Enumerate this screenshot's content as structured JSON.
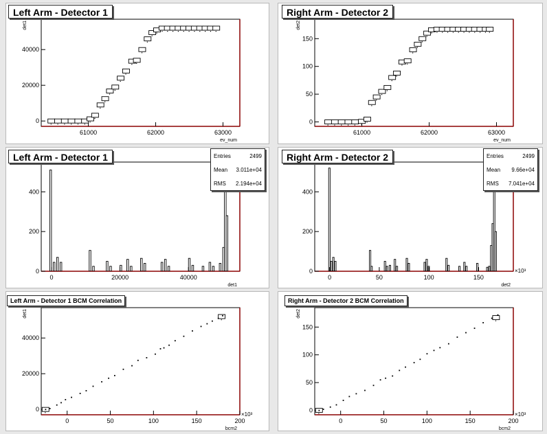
{
  "pads": [
    {
      "title": "Left Arm - Detector 1"
    },
    {
      "title": "Right Arm - Detector 2"
    },
    {
      "title": "Left Arm - Detector 1"
    },
    {
      "title": "Right Arm - Detector 2"
    },
    {
      "title": "Left Arm - Detector 1 BCM Correlation"
    },
    {
      "title": "Right Arm - Detector 2 BCM Correlation"
    }
  ],
  "stats": [
    {
      "entries_label": "Entries",
      "entries": "2499",
      "mean_label": "Mean",
      "mean": "3.011e+04",
      "rms_label": "RMS",
      "rms": "2.194e+04"
    },
    {
      "entries_label": "Entries",
      "entries": "2499",
      "mean_label": "Mean",
      "mean": "9.66e+04",
      "rms_label": "RMS",
      "rms": "7.041e+04"
    }
  ],
  "colors": {
    "frame": "#8b0000",
    "background": "#e8e8e8",
    "pad": "#ffffff",
    "marks": "#000000"
  },
  "chart_data": [
    {
      "type": "scatter",
      "title": "Left Arm - Detector 1",
      "xlabel": "ev_num",
      "ylabel": "det1",
      "xlim": [
        60300,
        63250
      ],
      "ylim": [
        -3000,
        57000
      ],
      "xticks": [
        61000,
        62000,
        63000
      ],
      "xtick_labels": [
        "61000",
        "62000",
        "63000"
      ],
      "yticks": [
        0,
        20000,
        40000
      ],
      "ytick_labels": [
        "0",
        "20000",
        "40000"
      ],
      "boxes": [
        [
          60450,
          0
        ],
        [
          60550,
          0
        ],
        [
          60650,
          0
        ],
        [
          60750,
          0
        ],
        [
          60850,
          0
        ],
        [
          60950,
          0
        ],
        [
          61030,
          1200
        ],
        [
          61100,
          3200
        ],
        [
          61180,
          9000
        ],
        [
          61250,
          12500
        ],
        [
          61320,
          16800
        ],
        [
          61400,
          19000
        ],
        [
          61480,
          24000
        ],
        [
          61560,
          28000
        ],
        [
          61650,
          33500
        ],
        [
          61720,
          34000
        ],
        [
          61800,
          40000
        ],
        [
          61880,
          46000
        ],
        [
          61950,
          49500
        ],
        [
          62020,
          51000
        ],
        [
          62100,
          52000
        ],
        [
          62180,
          52000
        ],
        [
          62260,
          52000
        ],
        [
          62340,
          52000
        ],
        [
          62420,
          52000
        ],
        [
          62500,
          52000
        ],
        [
          62580,
          52000
        ],
        [
          62660,
          52000
        ],
        [
          62740,
          52000
        ],
        [
          62820,
          52000
        ],
        [
          62900,
          52000
        ]
      ]
    },
    {
      "type": "scatter",
      "title": "Right Arm - Detector 2",
      "xlabel": "ev_num",
      "ylabel": "det2",
      "xlim": [
        60300,
        63250
      ],
      "ylim": [
        -8,
        185
      ],
      "xticks": [
        61000,
        62000,
        63000
      ],
      "xtick_labels": [
        "61000",
        "62000",
        "63000"
      ],
      "yticks": [
        0,
        50,
        100,
        150
      ],
      "ytick_labels": [
        "0",
        "50",
        "100",
        "150"
      ],
      "boxes": [
        [
          60500,
          0
        ],
        [
          60600,
          0
        ],
        [
          60700,
          0
        ],
        [
          60800,
          0
        ],
        [
          60900,
          0
        ],
        [
          61000,
          1
        ],
        [
          61080,
          5
        ],
        [
          61150,
          35
        ],
        [
          61220,
          45
        ],
        [
          61300,
          55
        ],
        [
          61380,
          62
        ],
        [
          61450,
          80
        ],
        [
          61520,
          88
        ],
        [
          61600,
          108
        ],
        [
          61680,
          110
        ],
        [
          61760,
          130
        ],
        [
          61830,
          140
        ],
        [
          61900,
          150
        ],
        [
          61970,
          160
        ],
        [
          62040,
          166
        ],
        [
          62120,
          167
        ],
        [
          62200,
          167
        ],
        [
          62280,
          167
        ],
        [
          62360,
          167
        ],
        [
          62440,
          167
        ],
        [
          62520,
          167
        ],
        [
          62600,
          167
        ],
        [
          62680,
          167
        ],
        [
          62760,
          167
        ],
        [
          62840,
          167
        ],
        [
          62900,
          167
        ]
      ]
    },
    {
      "type": "bar",
      "title": "Left Arm - Detector 1",
      "xlabel": "det1",
      "ylabel": "",
      "xlim": [
        -3000,
        55000
      ],
      "ylim": [
        0,
        550
      ],
      "xticks": [
        0,
        20000,
        40000
      ],
      "xtick_labels": [
        "0",
        "20000",
        "40000"
      ],
      "yticks": [
        0,
        200,
        400
      ],
      "ytick_labels": [
        "0",
        "200",
        "400"
      ],
      "bin_width": 500,
      "bins": [
        [
          -500,
          510
        ],
        [
          500,
          45
        ],
        [
          1500,
          70
        ],
        [
          2500,
          45
        ],
        [
          11000,
          105
        ],
        [
          12000,
          25
        ],
        [
          16000,
          50
        ],
        [
          17000,
          25
        ],
        [
          20000,
          30
        ],
        [
          22000,
          60
        ],
        [
          23000,
          25
        ],
        [
          26000,
          65
        ],
        [
          27000,
          40
        ],
        [
          32000,
          45
        ],
        [
          33000,
          60
        ],
        [
          34000,
          25
        ],
        [
          40000,
          65
        ],
        [
          41000,
          30
        ],
        [
          44000,
          25
        ],
        [
          46000,
          45
        ],
        [
          47000,
          25
        ],
        [
          49000,
          40
        ],
        [
          50000,
          120
        ],
        [
          50500,
          440
        ],
        [
          51000,
          280
        ]
      ]
    },
    {
      "type": "bar",
      "title": "Right Arm - Detector 2",
      "xlabel": "det2",
      "ylabel": "",
      "x_multiplier": "×10³",
      "xlim": [
        -15,
        185
      ],
      "ylim": [
        0,
        550
      ],
      "xticks": [
        0,
        50,
        100,
        150
      ],
      "xtick_labels": [
        "0",
        "50",
        "100",
        "150"
      ],
      "yticks": [
        0,
        200,
        400
      ],
      "ytick_labels": [
        "0",
        "200",
        "400"
      ],
      "bin_width": 1.5,
      "bins": [
        [
          -1,
          520
        ],
        [
          1,
          50
        ],
        [
          3,
          70
        ],
        [
          5,
          50
        ],
        [
          40,
          105
        ],
        [
          41.5,
          25
        ],
        [
          55,
          50
        ],
        [
          57,
          25
        ],
        [
          60,
          30
        ],
        [
          65,
          60
        ],
        [
          67,
          25
        ],
        [
          77,
          65
        ],
        [
          79,
          40
        ],
        [
          95,
          45
        ],
        [
          97,
          60
        ],
        [
          99,
          25
        ],
        [
          117,
          65
        ],
        [
          119,
          30
        ],
        [
          130,
          25
        ],
        [
          135,
          45
        ],
        [
          137,
          25
        ],
        [
          148,
          40
        ],
        [
          158,
          20
        ],
        [
          160,
          25
        ],
        [
          162,
          130
        ],
        [
          163.5,
          240
        ],
        [
          165,
          420
        ],
        [
          166.5,
          200
        ]
      ]
    },
    {
      "type": "scatter",
      "title": "Left Arm - Detector 1 BCM Correlation",
      "xlabel": "bcm2",
      "ylabel": "det1",
      "x_multiplier": "×10³",
      "xlim": [
        -30,
        200
      ],
      "ylim": [
        -3000,
        57000
      ],
      "xticks": [
        0,
        50,
        100,
        150,
        200
      ],
      "xtick_labels": [
        "0",
        "50",
        "100",
        "150",
        "200"
      ],
      "yticks": [
        0,
        20000,
        40000
      ],
      "ytick_labels": [
        "0",
        "20000",
        "40000"
      ],
      "points": [
        [
          -25,
          0
        ],
        [
          -20,
          500
        ],
        [
          -12,
          2500
        ],
        [
          -7,
          3800
        ],
        [
          -2,
          5500
        ],
        [
          5,
          6800
        ],
        [
          15,
          9000
        ],
        [
          22,
          10500
        ],
        [
          30,
          13000
        ],
        [
          40,
          15500
        ],
        [
          48,
          17500
        ],
        [
          55,
          19000
        ],
        [
          65,
          22500
        ],
        [
          75,
          24500
        ],
        [
          82,
          27500
        ],
        [
          92,
          29000
        ],
        [
          102,
          31000
        ],
        [
          108,
          34000
        ],
        [
          112,
          34500
        ],
        [
          118,
          36000
        ],
        [
          125,
          38500
        ],
        [
          135,
          41000
        ],
        [
          145,
          44000
        ],
        [
          155,
          46500
        ],
        [
          162,
          48000
        ],
        [
          168,
          49500
        ],
        [
          175,
          51000
        ],
        [
          180,
          52500
        ]
      ],
      "boxes": [
        [
          -25,
          0
        ],
        [
          179,
          52000
        ]
      ]
    },
    {
      "type": "scatter",
      "title": "Right Arm - Detector 2 BCM Correlation",
      "xlabel": "bcm2",
      "ylabel": "det2",
      "x_multiplier": "×10³",
      "xlim": [
        -30,
        200
      ],
      "ylim": [
        -8,
        185
      ],
      "xticks": [
        0,
        50,
        100,
        150,
        200
      ],
      "xtick_labels": [
        "0",
        "50",
        "100",
        "150",
        "200"
      ],
      "yticks": [
        0,
        50,
        100,
        150
      ],
      "ytick_labels": [
        "0",
        "50",
        "100",
        "150"
      ],
      "points": [
        [
          -25,
          0
        ],
        [
          -20,
          2
        ],
        [
          -12,
          6
        ],
        [
          -5,
          10
        ],
        [
          3,
          18
        ],
        [
          10,
          25
        ],
        [
          18,
          30
        ],
        [
          28,
          36
        ],
        [
          38,
          45
        ],
        [
          46,
          55
        ],
        [
          52,
          58
        ],
        [
          60,
          62
        ],
        [
          68,
          72
        ],
        [
          75,
          78
        ],
        [
          85,
          86
        ],
        [
          92,
          92
        ],
        [
          100,
          102
        ],
        [
          108,
          108
        ],
        [
          115,
          113
        ],
        [
          125,
          120
        ],
        [
          135,
          132
        ],
        [
          145,
          140
        ],
        [
          155,
          148
        ],
        [
          165,
          158
        ],
        [
          175,
          166
        ],
        [
          182,
          172
        ]
      ],
      "boxes": [
        [
          -25,
          0
        ],
        [
          180,
          167
        ]
      ]
    }
  ]
}
